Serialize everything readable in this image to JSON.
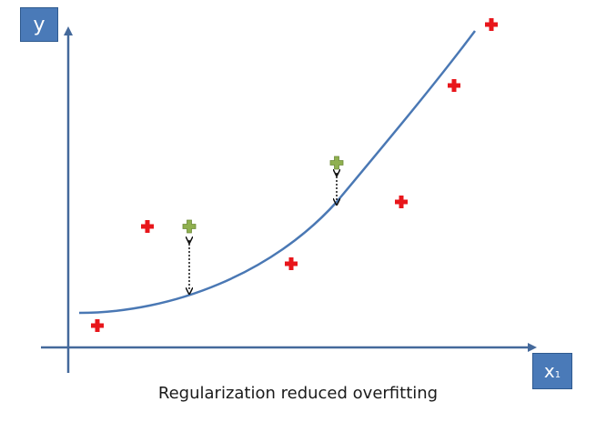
{
  "caption": "Regularization reduced overfitting",
  "y_label": "y",
  "x_label": {
    "main": "x",
    "subscript": "1"
  },
  "colors": {
    "axis": "#44699b",
    "curve": "#4a78b4",
    "training_point": "#e8161b",
    "test_point": "#8fb04f",
    "test_point_outline": "#6d8a3a",
    "error_arrow": "#111111",
    "label_box": "#4a7ab8"
  },
  "icons": {
    "training_point": "plus-icon",
    "test_point": "plus-icon"
  }
}
